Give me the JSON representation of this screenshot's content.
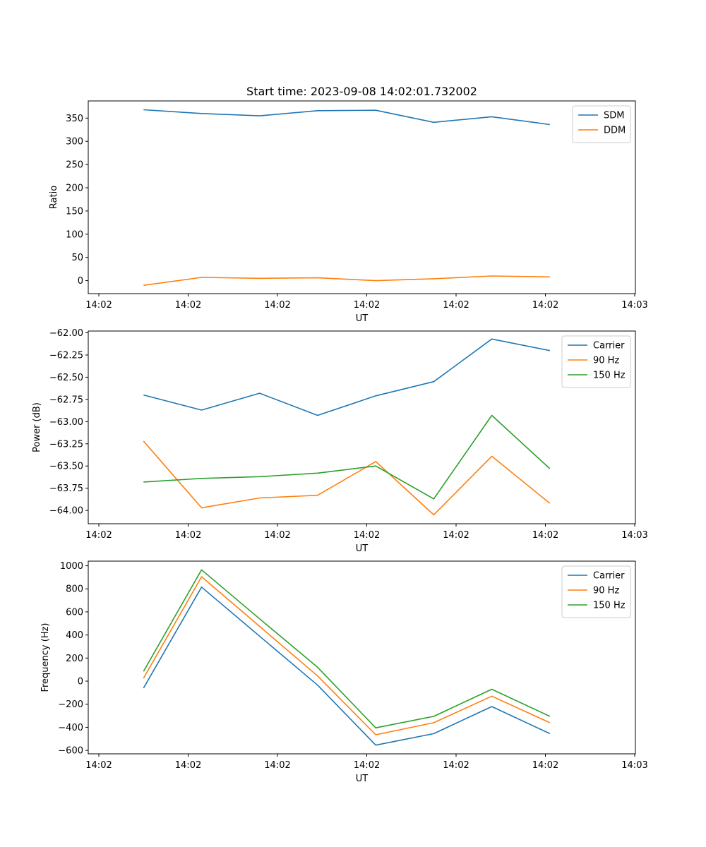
{
  "chart_data": [
    {
      "type": "line",
      "title": "Start time: 2023-09-08 14:02:01.732002",
      "xlabel": "UT",
      "ylabel": "Ratio",
      "xlim": [
        0,
        6.2
      ],
      "ylim": [
        -28,
        387
      ],
      "x": [
        0.5,
        1.15,
        1.8,
        2.45,
        3.1,
        3.75,
        4.4,
        5.05
      ],
      "x_ticks": [
        0,
        1,
        2,
        3,
        4,
        5,
        6
      ],
      "x_tick_labels": [
        "14:02",
        "14:02",
        "14:02",
        "14:02",
        "14:02",
        "14:02",
        "14:03"
      ],
      "y_ticks": [
        0,
        50,
        100,
        150,
        200,
        250,
        300,
        350
      ],
      "y_tick_labels": [
        "0",
        "50",
        "100",
        "150",
        "200",
        "250",
        "300",
        "350"
      ],
      "legend": "top-right",
      "series": [
        {
          "name": "SDM",
          "color": "#1f77b4",
          "values": [
            368,
            360,
            355,
            366,
            367,
            341,
            353,
            336
          ]
        },
        {
          "name": "DDM",
          "color": "#ff7f0e",
          "values": [
            -10,
            7,
            5,
            6,
            0,
            4,
            10,
            8
          ]
        }
      ]
    },
    {
      "type": "line",
      "title": "",
      "xlabel": "UT",
      "ylabel": "Power (dB)",
      "xlim": [
        0,
        6.2
      ],
      "ylim": [
        -64.15,
        -61.98
      ],
      "x": [
        0.5,
        1.15,
        1.8,
        2.45,
        3.1,
        3.75,
        4.4,
        5.05
      ],
      "x_ticks": [
        0,
        1,
        2,
        3,
        4,
        5,
        6
      ],
      "x_tick_labels": [
        "14:02",
        "14:02",
        "14:02",
        "14:02",
        "14:02",
        "14:02",
        "14:03"
      ],
      "y_ticks": [
        -64.0,
        -63.75,
        -63.5,
        -63.25,
        -63.0,
        -62.75,
        -62.5,
        -62.25,
        -62.0
      ],
      "y_tick_labels": [
        "−64.00",
        "−63.75",
        "−63.50",
        "−63.25",
        "−63.00",
        "−62.75",
        "−62.50",
        "−62.25",
        "−62.00"
      ],
      "legend": "top-right",
      "series": [
        {
          "name": "Carrier",
          "color": "#1f77b4",
          "values": [
            -62.7,
            -62.87,
            -62.68,
            -62.93,
            -62.71,
            -62.55,
            -62.07,
            -62.2
          ]
        },
        {
          "name": "90 Hz",
          "color": "#ff7f0e",
          "values": [
            -63.22,
            -63.97,
            -63.86,
            -63.83,
            -63.45,
            -64.05,
            -63.39,
            -63.92
          ]
        },
        {
          "name": "150 Hz",
          "color": "#2ca02c",
          "values": [
            -63.68,
            -63.64,
            -63.62,
            -63.58,
            -63.5,
            -63.87,
            -62.93,
            -63.53
          ]
        }
      ]
    },
    {
      "type": "line",
      "title": "",
      "xlabel": "UT",
      "ylabel": "Frequency (Hz)",
      "xlim": [
        0,
        6.2
      ],
      "ylim": [
        -630,
        1040
      ],
      "x": [
        0.5,
        1.15,
        1.8,
        2.45,
        3.1,
        3.75,
        4.4,
        5.05
      ],
      "x_ticks": [
        0,
        1,
        2,
        3,
        4,
        5,
        6
      ],
      "x_tick_labels": [
        "14:02",
        "14:02",
        "14:02",
        "14:02",
        "14:02",
        "14:02",
        "14:03"
      ],
      "y_ticks": [
        -600,
        -400,
        -200,
        0,
        200,
        400,
        600,
        800,
        1000
      ],
      "y_tick_labels": [
        "−600",
        "−400",
        "−200",
        "0",
        "200",
        "400",
        "600",
        "800",
        "1000"
      ],
      "legend": "top-right",
      "series": [
        {
          "name": "Carrier",
          "color": "#1f77b4",
          "values": [
            -60,
            815,
            390,
            -35,
            -555,
            -455,
            -220,
            -455
          ]
        },
        {
          "name": "90 Hz",
          "color": "#ff7f0e",
          "values": [
            25,
            905,
            475,
            45,
            -465,
            -360,
            -130,
            -360
          ]
        },
        {
          "name": "150 Hz",
          "color": "#2ca02c",
          "values": [
            85,
            965,
            540,
            120,
            -405,
            -305,
            -70,
            -305
          ]
        }
      ]
    }
  ]
}
